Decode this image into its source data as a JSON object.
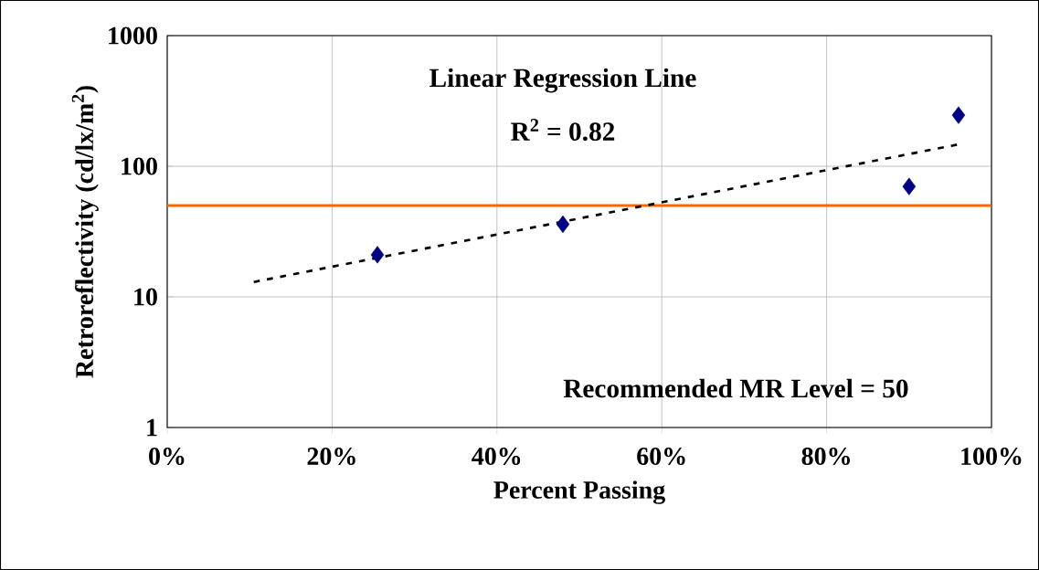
{
  "chart_data": {
    "type": "scatter",
    "xlabel": "Percent Passing",
    "ylabel": "Retroreflectivity (cd/lx/m$^{2}$)",
    "annotations": [
      "Linear Regression Line",
      "R$^{2}$ = 0.82",
      "Recommended MR Level = 50"
    ],
    "series": [
      {
        "color": "#000080",
        "marker": "diamond",
        "x": [
          25.5,
          48,
          90,
          96
        ],
        "values": [
          21,
          36,
          70,
          246
        ]
      },
      {
        "type": "line",
        "color": "#000000",
        "marker": "none",
        "line_style": "dashed",
        "x": [
          10.5,
          96
        ],
        "values": [
          13,
          147
        ]
      }
    ],
    "xlim": [
      0,
      100
    ],
    "xticks": [
      {
        "value": 0,
        "label": "0%"
      },
      {
        "value": 20,
        "label": "20%"
      },
      {
        "value": 40,
        "label": "40%"
      },
      {
        "value": 60,
        "label": "60%"
      },
      {
        "value": 80,
        "label": "80%"
      },
      {
        "value": 100,
        "label": "100%"
      }
    ],
    "ylim": [
      1,
      1000
    ],
    "yticks": [
      1,
      10,
      100,
      1000
    ],
    "log": "y",
    "grid": true,
    "ref_lines": [
      {
        "axis": "y",
        "value": 50,
        "color": "#ff6600"
      }
    ]
  }
}
